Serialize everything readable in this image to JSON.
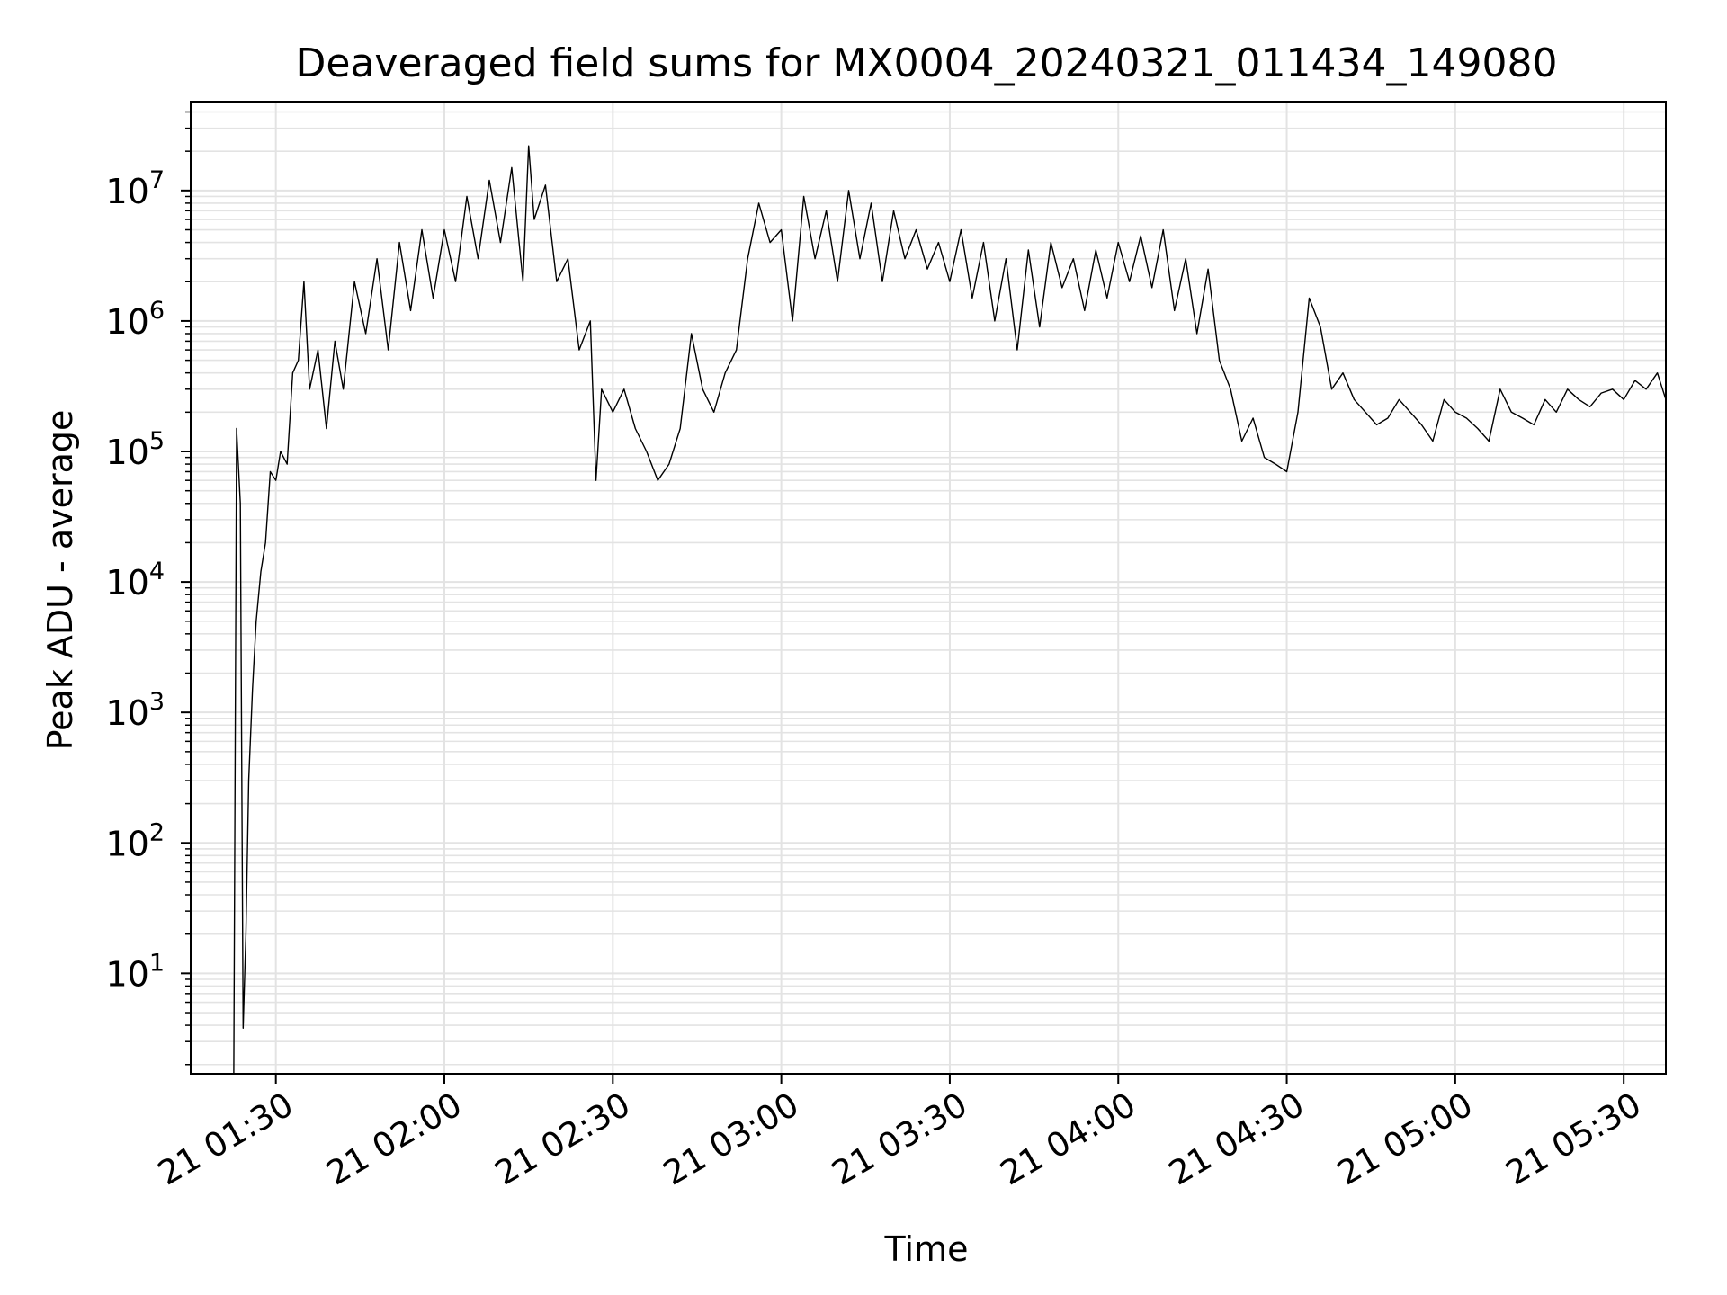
{
  "chart_data": {
    "type": "line",
    "title": "Deaveraged field sums for MX0004_20240321_011434_149080",
    "xlabel": "Time",
    "ylabel": "Peak ADU - average",
    "y_scale": "log",
    "ylim": [
      1.7,
      48000000
    ],
    "xlim": [
      "21 01:14:50",
      "21 05:37:30"
    ],
    "grid": true,
    "x_ticks": [
      "21 01:30",
      "21 02:00",
      "21 02:30",
      "21 03:00",
      "21 03:30",
      "21 04:00",
      "21 04:30",
      "21 05:00",
      "21 05:30"
    ],
    "y_ticks": [
      {
        "base": "10",
        "exp": "1",
        "value": 10
      },
      {
        "base": "10",
        "exp": "2",
        "value": 100
      },
      {
        "base": "10",
        "exp": "3",
        "value": 1000
      },
      {
        "base": "10",
        "exp": "4",
        "value": 10000
      },
      {
        "base": "10",
        "exp": "5",
        "value": 100000
      },
      {
        "base": "10",
        "exp": "6",
        "value": 1000000
      },
      {
        "base": "10",
        "exp": "7",
        "value": 10000000
      }
    ],
    "series": [
      {
        "color": "#000000",
        "x": [
          "21 01:22:30",
          "21 01:23:00",
          "21 01:23:40",
          "21 01:24:10",
          "21 01:24:40",
          "21 01:25:10",
          "21 01:25:50",
          "21 01:26:30",
          "21 01:27:20",
          "21 01:28:10",
          "21 01:29:00",
          "21 01:30:00",
          "21 01:30:50",
          "21 01:32:00",
          "21 01:33:00",
          "21 01:34:00",
          "21 01:35:00",
          "21 01:36:00",
          "21 01:37:30",
          "21 01:39:00",
          "21 01:40:30",
          "21 01:42:00",
          "21 01:44:00",
          "21 01:46:00",
          "21 01:48:00",
          "21 01:50:00",
          "21 01:52:00",
          "21 01:54:00",
          "21 01:56:00",
          "21 01:58:00",
          "21 02:00:00",
          "21 02:02:00",
          "21 02:04:00",
          "21 02:06:00",
          "21 02:08:00",
          "21 02:10:00",
          "21 02:12:00",
          "21 02:14:00",
          "21 02:15:00",
          "21 02:16:00",
          "21 02:18:00",
          "21 02:20:00",
          "21 02:22:00",
          "21 02:24:00",
          "21 02:26:00",
          "21 02:27:00",
          "21 02:28:00",
          "21 02:30:00",
          "21 02:32:00",
          "21 02:34:00",
          "21 02:36:00",
          "21 02:38:00",
          "21 02:40:00",
          "21 02:42:00",
          "21 02:44:00",
          "21 02:46:00",
          "21 02:48:00",
          "21 02:50:00",
          "21 02:52:00",
          "21 02:54:00",
          "21 02:56:00",
          "21 02:58:00",
          "21 03:00:00",
          "21 03:02:00",
          "21 03:04:00",
          "21 03:06:00",
          "21 03:08:00",
          "21 03:10:00",
          "21 03:12:00",
          "21 03:14:00",
          "21 03:16:00",
          "21 03:18:00",
          "21 03:20:00",
          "21 03:22:00",
          "21 03:24:00",
          "21 03:26:00",
          "21 03:28:00",
          "21 03:30:00",
          "21 03:32:00",
          "21 03:34:00",
          "21 03:36:00",
          "21 03:38:00",
          "21 03:40:00",
          "21 03:42:00",
          "21 03:44:00",
          "21 03:46:00",
          "21 03:48:00",
          "21 03:50:00",
          "21 03:52:00",
          "21 03:54:00",
          "21 03:56:00",
          "21 03:58:00",
          "21 04:00:00",
          "21 04:02:00",
          "21 04:04:00",
          "21 04:06:00",
          "21 04:08:00",
          "21 04:10:00",
          "21 04:12:00",
          "21 04:14:00",
          "21 04:16:00",
          "21 04:18:00",
          "21 04:20:00",
          "21 04:22:00",
          "21 04:24:00",
          "21 04:26:00",
          "21 04:28:00",
          "21 04:30:00",
          "21 04:32:00",
          "21 04:34:00",
          "21 04:36:00",
          "21 04:38:00",
          "21 04:40:00",
          "21 04:42:00",
          "21 04:44:00",
          "21 04:46:00",
          "21 04:48:00",
          "21 04:50:00",
          "21 04:52:00",
          "21 04:54:00",
          "21 04:56:00",
          "21 04:58:00",
          "21 05:00:00",
          "21 05:02:00",
          "21 05:04:00",
          "21 05:06:00",
          "21 05:08:00",
          "21 05:10:00",
          "21 05:12:00",
          "21 05:14:00",
          "21 05:16:00",
          "21 05:18:00",
          "21 05:20:00",
          "21 05:22:00",
          "21 05:24:00",
          "21 05:26:00",
          "21 05:28:00",
          "21 05:30:00",
          "21 05:32:00",
          "21 05:34:00",
          "21 05:36:00",
          "21 05:37:30"
        ],
        "y": [
          1.7,
          150000,
          40000,
          3.8,
          20,
          300,
          1500,
          5000,
          12000,
          20000,
          70000,
          60000,
          100000,
          80000,
          400000,
          500000,
          2000000,
          300000,
          600000,
          150000,
          700000,
          300000,
          2000000,
          800000,
          3000000,
          600000,
          4000000,
          1200000,
          5000000,
          1500000,
          5000000,
          2000000,
          9000000,
          3000000,
          12000000,
          4000000,
          15000000,
          2000000,
          22000000,
          6000000,
          11000000,
          2000000,
          3000000,
          600000,
          1000000,
          60000,
          300000,
          200000,
          300000,
          150000,
          100000,
          60000,
          80000,
          150000,
          800000,
          300000,
          200000,
          400000,
          600000,
          3000000,
          8000000,
          4000000,
          5000000,
          1000000,
          9000000,
          3000000,
          7000000,
          2000000,
          10000000,
          3000000,
          8000000,
          2000000,
          7000000,
          3000000,
          5000000,
          2500000,
          4000000,
          2000000,
          5000000,
          1500000,
          4000000,
          1000000,
          3000000,
          600000,
          3500000,
          900000,
          4000000,
          1800000,
          3000000,
          1200000,
          3500000,
          1500000,
          4000000,
          2000000,
          4500000,
          1800000,
          5000000,
          1200000,
          3000000,
          800000,
          2500000,
          500000,
          300000,
          120000,
          180000,
          90000,
          80000,
          70000,
          200000,
          1500000,
          900000,
          300000,
          400000,
          250000,
          200000,
          160000,
          180000,
          250000,
          200000,
          160000,
          120000,
          250000,
          200000,
          180000,
          150000,
          120000,
          300000,
          200000,
          180000,
          160000,
          250000,
          200000,
          300000,
          250000,
          220000,
          280000,
          300000,
          250000,
          350000,
          300000,
          400000,
          250000
        ]
      }
    ]
  }
}
